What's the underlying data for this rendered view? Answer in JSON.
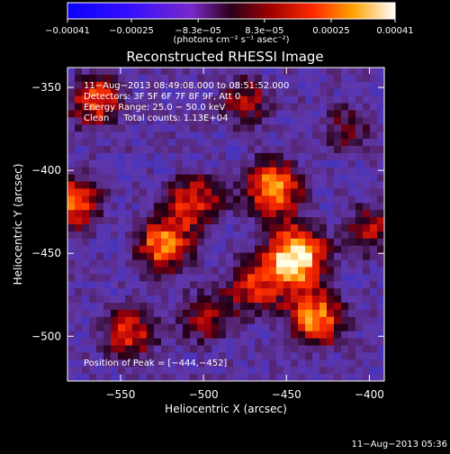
{
  "chart_data": {
    "type": "heatmap",
    "title": "Reconstructed RHESSI Image",
    "xlabel": "Heliocentric X (arcsec)",
    "ylabel": "Heliocentric Y (arcsec)",
    "xlim": [
      -582,
      -391
    ],
    "ylim": [
      -527,
      -338
    ],
    "x_ticks": [
      -550,
      -500,
      -450,
      -400
    ],
    "y_ticks": [
      -350,
      -400,
      -450,
      -500
    ],
    "x_tick_labels": [
      "−550",
      "−500",
      "−450",
      "−400"
    ],
    "y_tick_labels": [
      "−350",
      "−400",
      "−450",
      "−500"
    ],
    "colorbar": {
      "range": [
        -0.00041,
        0.00041
      ],
      "ticks": [
        -0.00041,
        -0.00025,
        -8.3e-05,
        8.3e-05,
        0.00025,
        0.00041
      ],
      "tick_labels": [
        "−0.00041",
        "−0.00025",
        "−8.3e−05",
        "8.3e−05",
        "0.00025",
        "0.00041"
      ],
      "units_label": "(photons cm⁻² s⁻¹ asec⁻²)"
    },
    "annotations": [
      "11−Aug−2013 08:49:08.000 to 08:51:52.000",
      "Detectors: 3F 5F 6F 7F 8F 9F, Att 0",
      "Energy Range: 25.0 − 50.0 keV",
      "Clean     Total counts: 1.13E+04"
    ],
    "peak_label": "Position of Peak = [−444,−452]",
    "peak": [
      -444,
      -452
    ],
    "sources": [
      {
        "x": -444,
        "y": -452,
        "value": 0.00041
      },
      {
        "x": -458,
        "y": -410,
        "value": 0.00033
      },
      {
        "x": -432,
        "y": -490,
        "value": 0.00032
      },
      {
        "x": -525,
        "y": -445,
        "value": 0.0003
      },
      {
        "x": -505,
        "y": -418,
        "value": 0.00024
      },
      {
        "x": -565,
        "y": -358,
        "value": 0.00027
      },
      {
        "x": -578,
        "y": -420,
        "value": 0.00028
      },
      {
        "x": -545,
        "y": -498,
        "value": 0.00024
      },
      {
        "x": -475,
        "y": -358,
        "value": 0.0002
      },
      {
        "x": -398,
        "y": -435,
        "value": 0.0002
      },
      {
        "x": -470,
        "y": -470,
        "value": 0.00022
      },
      {
        "x": -500,
        "y": -490,
        "value": 0.00018
      },
      {
        "x": -413,
        "y": -375,
        "value": 0.00016
      }
    ]
  },
  "timestamp": "11−Aug−2013 05:36"
}
